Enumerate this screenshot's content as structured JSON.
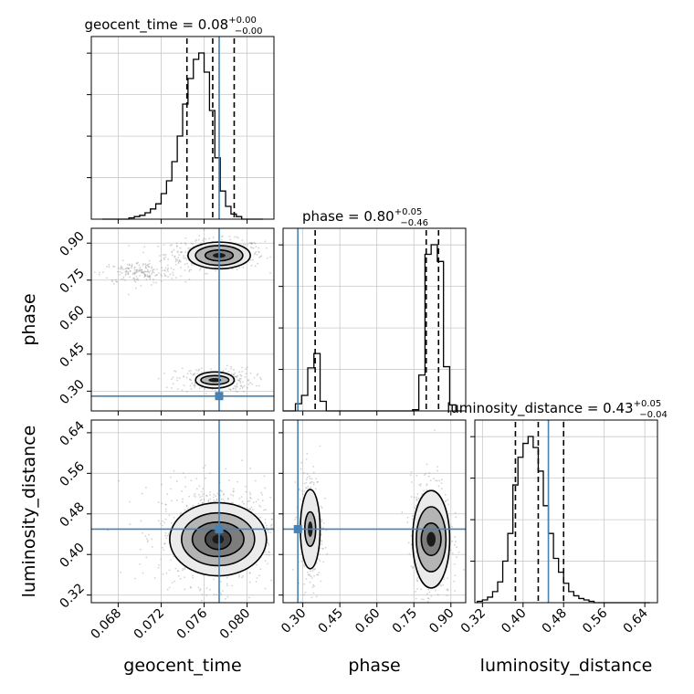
{
  "chart_data": {
    "type": "corner",
    "parameters": [
      "geocent_time",
      "phase",
      "luminosity_distance"
    ],
    "truths": {
      "geocent_time": 0.0774,
      "phase": 0.28,
      "luminosity_distance": 0.45
    },
    "colors": {
      "truth": "#4682b4",
      "hist": "#000000",
      "grid": "#c8c8c8",
      "scatter": "#808080"
    },
    "titles": [
      {
        "param": "geocent_time",
        "text": "geocent_time = 0.08",
        "plus": "+0.00",
        "minus": "−0.00"
      },
      {
        "param": "phase",
        "text": "phase = 0.80",
        "plus": "+0.05",
        "minus": "−0.46"
      },
      {
        "param": "luminosity_distance",
        "text": "luminosity_distance = 0.43",
        "plus": "+0.05",
        "minus": "−0.04"
      }
    ],
    "axes": {
      "geocent_time": {
        "label": "geocent_time",
        "range": [
          0.0655,
          0.0825
        ],
        "ticks": [
          0.068,
          0.072,
          0.076,
          0.08
        ],
        "tick_labels": [
          "0.068",
          "0.072",
          "0.076",
          "0.080"
        ]
      },
      "phase": {
        "label": "phase",
        "range": [
          0.22,
          0.96
        ],
        "ticks": [
          0.3,
          0.45,
          0.6,
          0.75,
          0.9
        ],
        "tick_labels": [
          "0.30",
          "0.45",
          "0.60",
          "0.75",
          "0.90"
        ]
      },
      "luminosity_distance": {
        "label": "luminosity_distance",
        "range": [
          0.305,
          0.665
        ],
        "ticks": [
          0.32,
          0.4,
          0.48,
          0.56,
          0.64
        ],
        "tick_labels": [
          "0.32",
          "0.40",
          "0.48",
          "0.56",
          "0.64"
        ]
      }
    },
    "histograms": {
      "geocent_time": {
        "edges": [
          0.0665,
          0.067,
          0.0675,
          0.068,
          0.0685,
          0.069,
          0.0695,
          0.07,
          0.0705,
          0.071,
          0.0715,
          0.072,
          0.0725,
          0.073,
          0.0735,
          0.074,
          0.0745,
          0.075,
          0.0755,
          0.076,
          0.0765,
          0.077,
          0.0775,
          0.078,
          0.0785,
          0.079,
          0.0795,
          0.08,
          0.0805,
          0.081,
          0.0815
        ],
        "counts": [
          0,
          0,
          0,
          0,
          0,
          1,
          2,
          3,
          5,
          8,
          12,
          20,
          30,
          45,
          65,
          90,
          110,
          125,
          130,
          115,
          85,
          48,
          22,
          10,
          4,
          2,
          0,
          0,
          0,
          0
        ],
        "quantiles": [
          0.0744,
          0.0768,
          0.0788
        ]
      },
      "phase": {
        "edges": [
          0.22,
          0.245,
          0.27,
          0.295,
          0.32,
          0.345,
          0.37,
          0.395,
          0.42,
          0.445,
          0.47,
          0.495,
          0.52,
          0.545,
          0.57,
          0.595,
          0.62,
          0.645,
          0.67,
          0.695,
          0.72,
          0.745,
          0.77,
          0.795,
          0.82,
          0.845,
          0.87,
          0.895,
          0.92,
          0.945
        ],
        "counts": [
          0,
          0,
          6,
          13,
          36,
          48,
          8,
          0,
          0,
          0,
          0,
          0,
          0,
          0,
          0,
          0,
          0,
          0,
          0,
          0,
          0,
          1,
          30,
          131,
          139,
          125,
          37,
          5,
          0
        ],
        "quantiles": [
          0.35,
          0.8,
          0.85
        ]
      },
      "luminosity_distance": {
        "edges": [
          0.31,
          0.32,
          0.33,
          0.34,
          0.35,
          0.36,
          0.37,
          0.38,
          0.39,
          0.4,
          0.41,
          0.42,
          0.43,
          0.44,
          0.45,
          0.46,
          0.47,
          0.48,
          0.49,
          0.5,
          0.51,
          0.52,
          0.53,
          0.54,
          0.55,
          0.56,
          0.57,
          0.58,
          0.59,
          0.6,
          0.61,
          0.62,
          0.63,
          0.64,
          0.65
        ],
        "counts": [
          1,
          2,
          4,
          8,
          15,
          30,
          50,
          85,
          105,
          115,
          120,
          112,
          95,
          70,
          50,
          32,
          22,
          14,
          8,
          5,
          3,
          2,
          1,
          0,
          0,
          0,
          0,
          0,
          0,
          0,
          0,
          0,
          0,
          0
        ],
        "quantiles": [
          0.385,
          0.43,
          0.48
        ]
      }
    },
    "contours": {
      "phase_vs_geocent_time": [
        {
          "cx": 0.0774,
          "cy": 0.85,
          "rx": [
            0.0013,
            0.0022,
            0.0029
          ],
          "ry": [
            0.022,
            0.04,
            0.054
          ]
        },
        {
          "cx": 0.077,
          "cy": 0.345,
          "rx": [
            0.0013,
            0.0018
          ],
          "ry": [
            0.018,
            0.033
          ]
        }
      ],
      "luminosity_distance_vs_geocent_time": [
        {
          "cx": 0.0773,
          "cy": 0.43,
          "rx": [
            0.0012,
            0.0024,
            0.0034,
            0.0045
          ],
          "ry": [
            0.02,
            0.034,
            0.052,
            0.072
          ]
        }
      ],
      "luminosity_distance_vs_phase": [
        {
          "cx": 0.33,
          "cy": 0.45,
          "rx": [
            0.022,
            0.04
          ],
          "ry": [
            0.034,
            0.078
          ]
        },
        {
          "cx": 0.82,
          "cy": 0.43,
          "rx": [
            0.04,
            0.06,
            0.075
          ],
          "ry": [
            0.032,
            0.064,
            0.096
          ]
        }
      ]
    },
    "scatter_clouds": {
      "phase_vs_geocent_time": [
        {
          "cx": 0.077,
          "cy": 0.855,
          "sx": 0.0023,
          "sy": 0.03,
          "n": 500
        },
        {
          "cx": 0.07,
          "cy": 0.78,
          "sx": 0.0018,
          "sy": 0.022,
          "n": 180
        },
        {
          "cx": 0.077,
          "cy": 0.345,
          "sx": 0.0018,
          "sy": 0.025,
          "n": 250
        }
      ],
      "luminosity_distance_vs_geocent_time": [
        {
          "cx": 0.0772,
          "cy": 0.44,
          "sx": 0.0027,
          "sy": 0.05,
          "n": 900
        }
      ],
      "luminosity_distance_vs_phase": [
        {
          "cx": 0.33,
          "cy": 0.45,
          "sx": 0.025,
          "sy": 0.06,
          "n": 300
        },
        {
          "cx": 0.82,
          "cy": 0.43,
          "sx": 0.04,
          "sy": 0.06,
          "n": 600
        }
      ]
    }
  }
}
